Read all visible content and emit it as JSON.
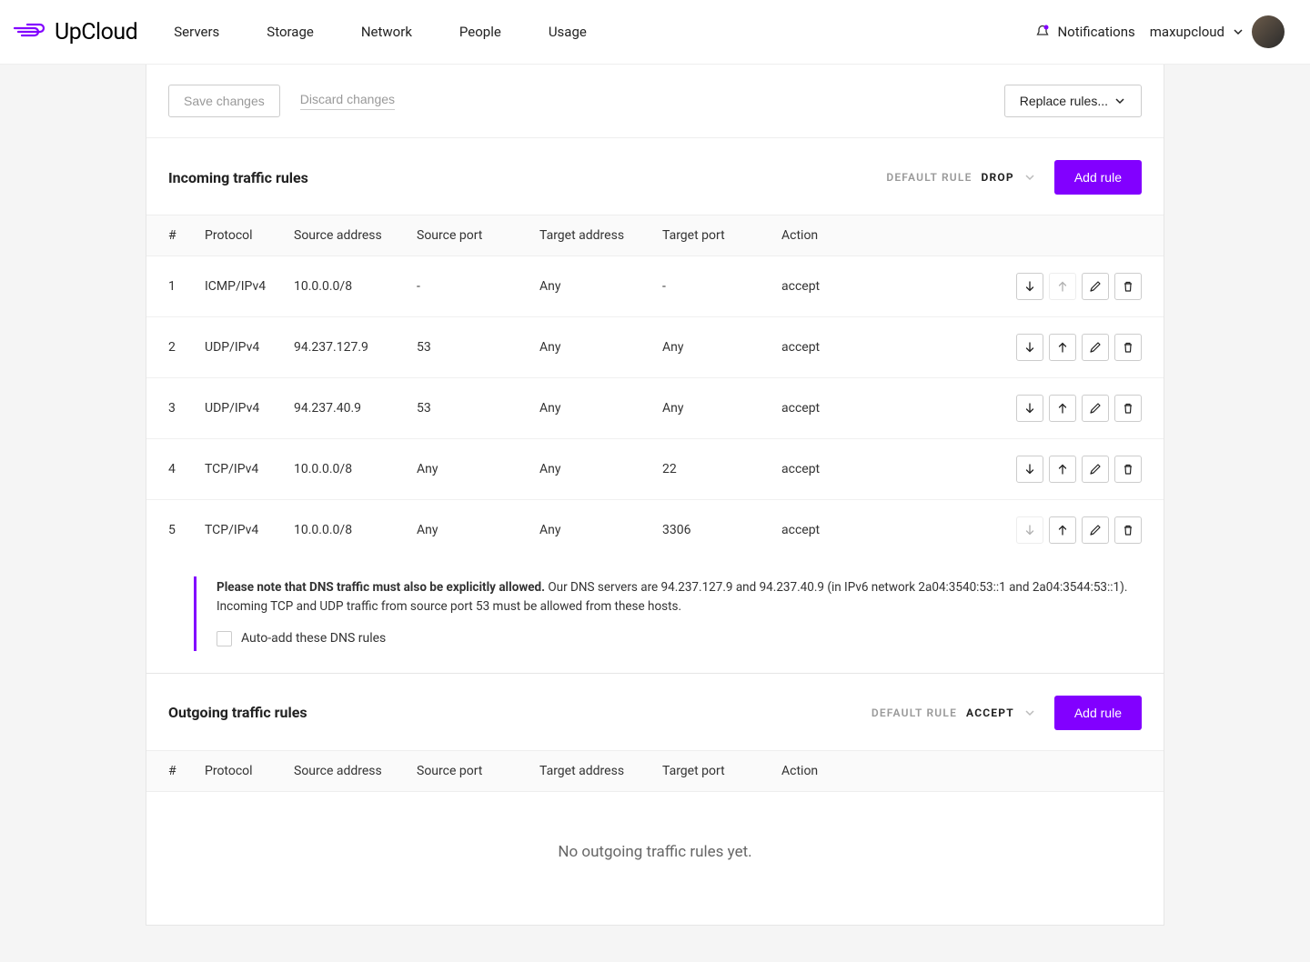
{
  "brand": {
    "name": "UpCloud",
    "accent": "#8200ff"
  },
  "nav": {
    "items": [
      "Servers",
      "Storage",
      "Network",
      "People",
      "Usage"
    ]
  },
  "header": {
    "notifications_label": "Notifications",
    "username": "maxupcloud"
  },
  "toolbar": {
    "save_label": "Save changes",
    "discard_label": "Discard changes",
    "replace_label": "Replace rules..."
  },
  "incoming": {
    "title": "Incoming traffic rules",
    "default_label": "DEFAULT RULE",
    "default_value": "DROP",
    "add_label": "Add rule",
    "columns": {
      "num": "#",
      "protocol": "Protocol",
      "src_addr": "Source address",
      "src_port": "Source port",
      "tgt_addr": "Target address",
      "tgt_port": "Target port",
      "action": "Action"
    },
    "rows": [
      {
        "num": "1",
        "protocol": "ICMP/IPv4",
        "src_addr": "10.0.0.0/8",
        "src_port": "-",
        "tgt_addr": "Any",
        "tgt_port": "-",
        "action": "accept",
        "up_disabled": true,
        "down_disabled": false
      },
      {
        "num": "2",
        "protocol": "UDP/IPv4",
        "src_addr": "94.237.127.9",
        "src_port": "53",
        "tgt_addr": "Any",
        "tgt_port": "Any",
        "action": "accept",
        "up_disabled": false,
        "down_disabled": false
      },
      {
        "num": "3",
        "protocol": "UDP/IPv4",
        "src_addr": "94.237.40.9",
        "src_port": "53",
        "tgt_addr": "Any",
        "tgt_port": "Any",
        "action": "accept",
        "up_disabled": false,
        "down_disabled": false
      },
      {
        "num": "4",
        "protocol": "TCP/IPv4",
        "src_addr": "10.0.0.0/8",
        "src_port": "Any",
        "tgt_addr": "Any",
        "tgt_port": "22",
        "action": "accept",
        "up_disabled": false,
        "down_disabled": false
      },
      {
        "num": "5",
        "protocol": "TCP/IPv4",
        "src_addr": "10.0.0.0/8",
        "src_port": "Any",
        "tgt_addr": "Any",
        "tgt_port": "3306",
        "action": "accept",
        "up_disabled": false,
        "down_disabled": true
      }
    ],
    "note_bold": "Please note that DNS traffic must also be explicitly allowed.",
    "note_rest": " Our DNS servers are 94.237.127.9 and 94.237.40.9 (in IPv6 network 2a04:3540:53::1 and 2a04:3544:53::1). Incoming TCP and UDP traffic from source port 53 must be allowed from these hosts.",
    "auto_add_label": "Auto-add these DNS rules"
  },
  "outgoing": {
    "title": "Outgoing traffic rules",
    "default_label": "DEFAULT RULE",
    "default_value": "ACCEPT",
    "add_label": "Add rule",
    "columns": {
      "num": "#",
      "protocol": "Protocol",
      "src_addr": "Source address",
      "src_port": "Source port",
      "tgt_addr": "Target address",
      "tgt_port": "Target port",
      "action": "Action"
    },
    "empty_text": "No outgoing traffic rules yet."
  }
}
